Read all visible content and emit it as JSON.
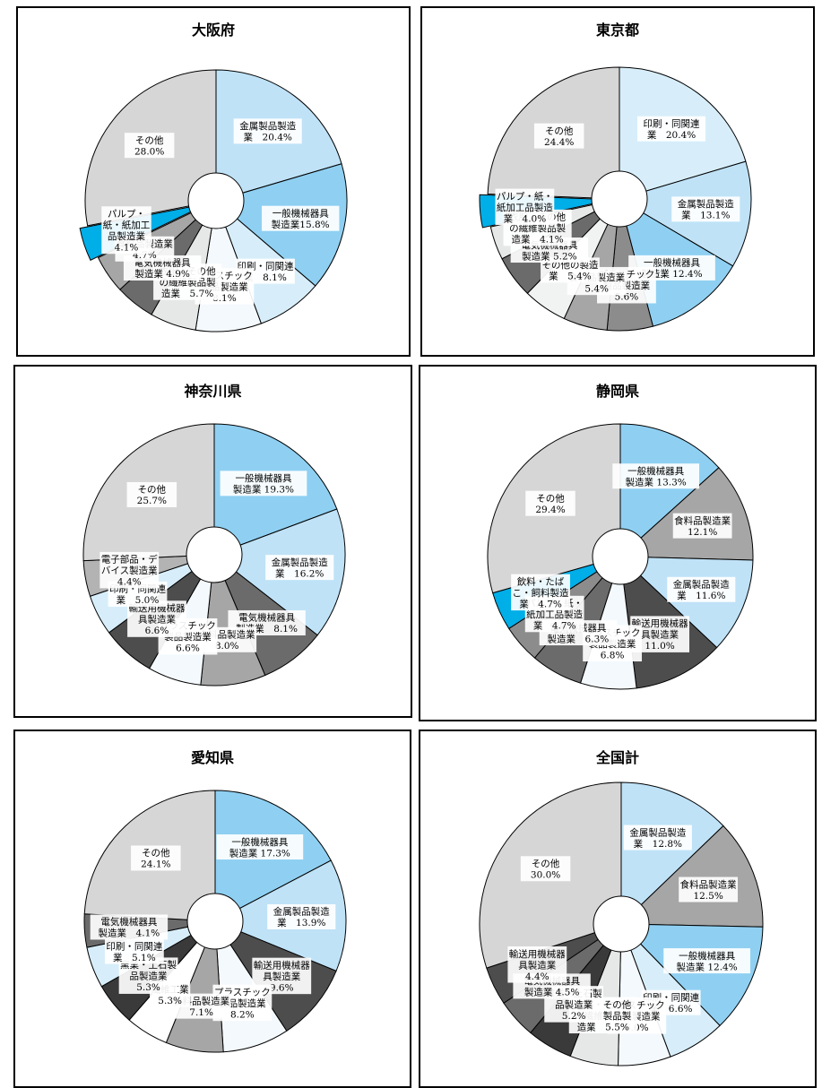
{
  "chart_data": [
    {
      "type": "pie",
      "title": "大阪府",
      "slices": [
        {
          "label": [
            "金属製品製造",
            "業　20.4%"
          ],
          "value": 20.4,
          "color": "#bfe2f7"
        },
        {
          "label": [
            "一般機械器具",
            "製造業15.8%"
          ],
          "value": 15.8,
          "color": "#8fd0f2"
        },
        {
          "label": [
            "印刷・同関連",
            "業　8.1%"
          ],
          "value": 8.1,
          "color": "#d7eefa"
        },
        {
          "label": [
            "プラスチック",
            "製品製造業",
            "8.1%"
          ],
          "value": 8.1,
          "color": "#f4f9fd"
        },
        {
          "label": [
            "衣服・その他",
            "の繊維製品製",
            "造業　5.7%"
          ],
          "value": 5.7,
          "color": "#e6e8e8"
        },
        {
          "label": [
            "電気機械器具",
            "製造業 4.9%"
          ],
          "value": 4.9,
          "color": "#6b6b6b"
        },
        {
          "label": [
            "食料品製造業",
            "4.7%"
          ],
          "value": 4.7,
          "color": "#a6a6a6"
        },
        {
          "label": [
            "パルプ・",
            "紙・紙加工",
            "品製造業",
            "4.1%"
          ],
          "value": 4.1,
          "color": "#00aee8",
          "explode": true
        },
        {
          "label": [
            "その他",
            "28.0%"
          ],
          "value": 28.0,
          "color": "#d6d6d6"
        }
      ]
    },
    {
      "type": "pie",
      "title": "東京都",
      "slices": [
        {
          "label": [
            "印刷・同関連",
            "業　20.4%"
          ],
          "value": 20.4,
          "color": "#d7eefa"
        },
        {
          "label": [
            "金属製品製造",
            "業　13.1%"
          ],
          "value": 13.1,
          "color": "#bfe2f7"
        },
        {
          "label": [
            "一般機械器具",
            "製造業 12.4%"
          ],
          "value": 12.4,
          "color": "#8fd0f2"
        },
        {
          "label": [
            "プラスチック",
            "製品製造業",
            "5.6%"
          ],
          "value": 5.6,
          "color": "#8c8c8c"
        },
        {
          "label": [
            "食料品製造業",
            "5.4%"
          ],
          "value": 5.4,
          "color": "#a6a6a6"
        },
        {
          "label": [
            "その他の製造",
            "業　5.4%"
          ],
          "value": 5.4,
          "color": "#f1f3f3"
        },
        {
          "label": [
            "電気機械器具",
            "製造業 5.2%"
          ],
          "value": 5.2,
          "color": "#6b6b6b"
        },
        {
          "label": [
            "衣服・その他",
            "の繊維製品製",
            "造業　4.1%"
          ],
          "value": 4.1,
          "color": "#e6e8e8"
        },
        {
          "label": [
            "パルプ・紙・",
            "紙加工品製造",
            "業　4.0%"
          ],
          "value": 4.0,
          "color": "#00aee8",
          "explode": true
        },
        {
          "label": [
            "その他",
            "24.4%"
          ],
          "value": 24.4,
          "color": "#d6d6d6"
        }
      ]
    },
    {
      "type": "pie",
      "title": "神奈川県",
      "slices": [
        {
          "label": [
            "一般機械器具",
            "製造業 19.3%"
          ],
          "value": 19.3,
          "color": "#8fd0f2"
        },
        {
          "label": [
            "金属製品製造",
            "業　16.2%"
          ],
          "value": 16.2,
          "color": "#bfe2f7"
        },
        {
          "label": [
            "電気機械器具",
            "製造業　8.1%"
          ],
          "value": 8.1,
          "color": "#6b6b6b"
        },
        {
          "label": [
            "食料品製造業",
            "8.0%"
          ],
          "value": 8.0,
          "color": "#a6a6a6"
        },
        {
          "label": [
            "プラスチック",
            "製品製造業",
            "6.6%"
          ],
          "value": 6.6,
          "color": "#f4f9fd"
        },
        {
          "label": [
            "輸送用機械器",
            "具製造業",
            "6.6%"
          ],
          "value": 6.6,
          "color": "#4d4d4d"
        },
        {
          "label": [
            "印刷・同関連",
            "業　5.0%"
          ],
          "value": 5.0,
          "color": "#d7eefa"
        },
        {
          "label": [
            "電子部品・デ",
            "バイス製造業",
            "4.4%"
          ],
          "value": 4.4,
          "color": "#b3b3b3"
        },
        {
          "label": [
            "その他",
            "25.7%"
          ],
          "value": 25.7,
          "color": "#d6d6d6"
        }
      ]
    },
    {
      "type": "pie",
      "title": "静岡県",
      "slices": [
        {
          "label": [
            "一般機械器具",
            "製造業 13.3%"
          ],
          "value": 13.3,
          "color": "#8fd0f2"
        },
        {
          "label": [
            "食料品製造業",
            "12.1%"
          ],
          "value": 12.1,
          "color": "#a6a6a6"
        },
        {
          "label": [
            "金属製品製造",
            "業　11.6%"
          ],
          "value": 11.6,
          "color": "#bfe2f7"
        },
        {
          "label": [
            "輸送用機械器",
            "具製造業",
            "11.0%"
          ],
          "value": 11.0,
          "color": "#4d4d4d"
        },
        {
          "label": [
            "プラスチック",
            "製品製造業",
            "6.8%"
          ],
          "value": 6.8,
          "color": "#f4f9fd"
        },
        {
          "label": [
            "電気機械器具",
            "製造業　6.3%"
          ],
          "value": 6.3,
          "color": "#6b6b6b"
        },
        {
          "label": [
            "パルプ・紙・",
            "紙加工品製造",
            "業　4.7%"
          ],
          "value": 4.7,
          "color": "#8c8c8c"
        },
        {
          "label": [
            "飲料・たば",
            "こ・飼料製造",
            "業　4.7%"
          ],
          "value": 4.7,
          "color": "#00aee8"
        },
        {
          "label": [
            "その他",
            "29.4%"
          ],
          "value": 29.4,
          "color": "#d6d6d6"
        }
      ]
    },
    {
      "type": "pie",
      "title": "愛知県",
      "slices": [
        {
          "label": [
            "一般機械器具",
            "製造業 17.3%"
          ],
          "value": 17.3,
          "color": "#8fd0f2"
        },
        {
          "label": [
            "金属製品製造",
            "業　13.9%"
          ],
          "value": 13.9,
          "color": "#bfe2f7"
        },
        {
          "label": [
            "輸送用機械器",
            "具製造業",
            "9.6%"
          ],
          "value": 9.6,
          "color": "#4d4d4d"
        },
        {
          "label": [
            "プラスチック",
            "製品製造業",
            "8.2%"
          ],
          "value": 8.2,
          "color": "#f4f9fd"
        },
        {
          "label": [
            "食料品製造業",
            "7.1%"
          ],
          "value": 7.1,
          "color": "#a6a6a6"
        },
        {
          "label": [
            "繊維工業",
            "5.3%"
          ],
          "value": 5.3,
          "color": "#ffffff"
        },
        {
          "label": [
            "窯業・土石製",
            "品製造業",
            "5.3%"
          ],
          "value": 5.3,
          "color": "#3a3a3a"
        },
        {
          "label": [
            "印刷・同関連",
            "業　5.1%"
          ],
          "value": 5.1,
          "color": "#d7eefa"
        },
        {
          "label": [
            "電気機械器具",
            "製造業　4.1%"
          ],
          "value": 4.1,
          "color": "#6b6b6b"
        },
        {
          "label": [
            "その他",
            "24.1%"
          ],
          "value": 24.1,
          "color": "#d6d6d6"
        }
      ]
    },
    {
      "type": "pie",
      "title": "全国計",
      "slices": [
        {
          "label": [
            "金属製品製造",
            "業　12.8%"
          ],
          "value": 12.8,
          "color": "#bfe2f7"
        },
        {
          "label": [
            "食料品製造業",
            "12.5%"
          ],
          "value": 12.5,
          "color": "#a6a6a6"
        },
        {
          "label": [
            "一般機械器具",
            "製造業 12.4%"
          ],
          "value": 12.4,
          "color": "#8fd0f2"
        },
        {
          "label": [
            "印刷・同関連",
            "業　6.6%"
          ],
          "value": 6.6,
          "color": "#d7eefa"
        },
        {
          "label": [
            "プラスチック",
            "製品製造業",
            "6.0%"
          ],
          "value": 6.0,
          "color": "#f4f9fd"
        },
        {
          "label": [
            "衣服・その他",
            "の繊維製品製",
            "造業　5.5%"
          ],
          "value": 5.5,
          "color": "#e6e8e8"
        },
        {
          "label": [
            "窯業・土石製",
            "品製造業",
            "5.2%"
          ],
          "value": 5.2,
          "color": "#3a3a3a"
        },
        {
          "label": [
            "電気機械器具",
            "製造業 4.5%"
          ],
          "value": 4.5,
          "color": "#6b6b6b"
        },
        {
          "label": [
            "輸送用機械器",
            "具製造業",
            "4.4%"
          ],
          "value": 4.4,
          "color": "#4d4d4d"
        },
        {
          "label": [
            "その他",
            "30.0%"
          ],
          "value": 30.0,
          "color": "#d6d6d6"
        }
      ]
    }
  ]
}
